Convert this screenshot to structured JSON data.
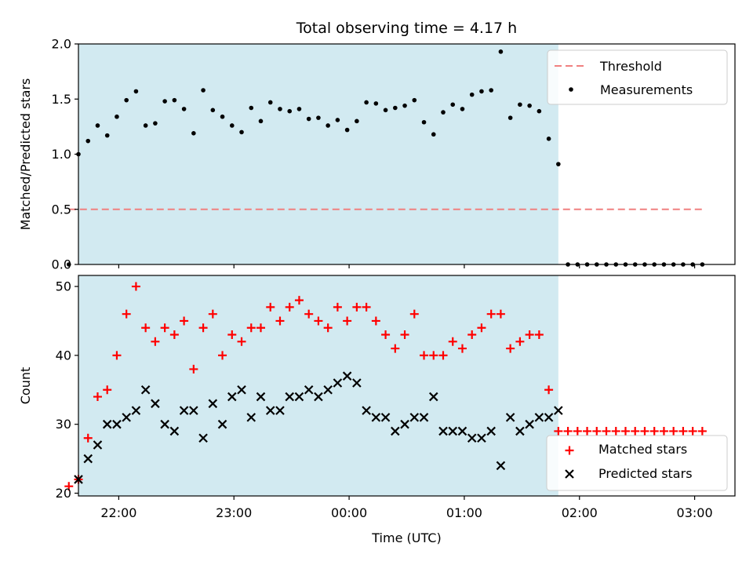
{
  "colors": {
    "observing_span": "#add8e6",
    "threshold": "#f08080",
    "measurements": "#000000",
    "matched": "#ff0000",
    "predicted": "#000000"
  },
  "chart_data": [
    {
      "type": "scatter",
      "title": "Total observing time = 4.17 h",
      "xlabel": "",
      "ylabel": "Matched/Predicted stars",
      "ylim": [
        0,
        2.0
      ],
      "yticks": [
        "0.0",
        "0.5",
        "1.0",
        "1.5",
        "2.0"
      ],
      "xlim": [
        "21:39",
        "03:21"
      ],
      "shaded_span": [
        "21:39",
        "01:49"
      ],
      "legend_position": "upper right",
      "threshold": {
        "name": "Threshold",
        "style": "dashed",
        "value": 0.5,
        "x_range": [
          "21:34",
          "03:04"
        ]
      },
      "series": [
        {
          "name": "Measurements",
          "marker": "dot",
          "points": [
            [
              "21:34",
              0.0
            ],
            [
              "21:39",
              1.0
            ],
            [
              "21:44",
              1.12
            ],
            [
              "21:49",
              1.26
            ],
            [
              "21:54",
              1.17
            ],
            [
              "21:59",
              1.34
            ],
            [
              "22:04",
              1.49
            ],
            [
              "22:09",
              1.57
            ],
            [
              "22:14",
              1.26
            ],
            [
              "22:19",
              1.28
            ],
            [
              "22:24",
              1.48
            ],
            [
              "22:29",
              1.49
            ],
            [
              "22:34",
              1.41
            ],
            [
              "22:39",
              1.19
            ],
            [
              "22:44",
              1.58
            ],
            [
              "22:49",
              1.4
            ],
            [
              "22:54",
              1.34
            ],
            [
              "22:59",
              1.26
            ],
            [
              "23:04",
              1.2
            ],
            [
              "23:09",
              1.42
            ],
            [
              "23:14",
              1.3
            ],
            [
              "23:19",
              1.47
            ],
            [
              "23:24",
              1.41
            ],
            [
              "23:29",
              1.39
            ],
            [
              "23:34",
              1.41
            ],
            [
              "23:39",
              1.32
            ],
            [
              "23:44",
              1.33
            ],
            [
              "23:49",
              1.26
            ],
            [
              "23:54",
              1.31
            ],
            [
              "23:59",
              1.22
            ],
            [
              "00:04",
              1.3
            ],
            [
              "00:09",
              1.47
            ],
            [
              "00:14",
              1.46
            ],
            [
              "00:19",
              1.4
            ],
            [
              "00:24",
              1.42
            ],
            [
              "00:29",
              1.44
            ],
            [
              "00:34",
              1.49
            ],
            [
              "00:39",
              1.29
            ],
            [
              "00:44",
              1.18
            ],
            [
              "00:49",
              1.38
            ],
            [
              "00:54",
              1.45
            ],
            [
              "00:59",
              1.41
            ],
            [
              "01:04",
              1.54
            ],
            [
              "01:09",
              1.57
            ],
            [
              "01:14",
              1.58
            ],
            [
              "01:19",
              1.93
            ],
            [
              "01:24",
              1.33
            ],
            [
              "01:29",
              1.45
            ],
            [
              "01:34",
              1.44
            ],
            [
              "01:39",
              1.39
            ],
            [
              "01:44",
              1.14
            ],
            [
              "01:49",
              0.91
            ],
            [
              "01:54",
              0.0
            ],
            [
              "01:59",
              0.0
            ],
            [
              "02:04",
              0.0
            ],
            [
              "02:09",
              0.0
            ],
            [
              "02:14",
              0.0
            ],
            [
              "02:19",
              0.0
            ],
            [
              "02:24",
              0.0
            ],
            [
              "02:29",
              0.0
            ],
            [
              "02:34",
              0.0
            ],
            [
              "02:39",
              0.0
            ],
            [
              "02:44",
              0.0
            ],
            [
              "02:49",
              0.0
            ],
            [
              "02:54",
              0.0
            ],
            [
              "02:59",
              0.0
            ],
            [
              "03:04",
              0.0
            ]
          ]
        }
      ]
    },
    {
      "type": "scatter",
      "title": "",
      "xlabel": "Time (UTC)",
      "ylabel": "Count",
      "ylim": [
        19.6,
        51.6
      ],
      "yticks": [
        "20",
        "30",
        "40",
        "50"
      ],
      "xticks": [
        "22:00",
        "23:00",
        "00:00",
        "01:00",
        "02:00",
        "03:00"
      ],
      "xlim": [
        "21:39",
        "03:21"
      ],
      "shaded_span": [
        "21:39",
        "01:49"
      ],
      "legend_position": "lower right",
      "series": [
        {
          "name": "Matched stars",
          "marker": "plus",
          "points": [
            [
              "21:34",
              21
            ],
            [
              "21:39",
              22
            ],
            [
              "21:44",
              28
            ],
            [
              "21:49",
              34
            ],
            [
              "21:54",
              35
            ],
            [
              "21:59",
              40
            ],
            [
              "22:04",
              46
            ],
            [
              "22:09",
              50
            ],
            [
              "22:14",
              44
            ],
            [
              "22:19",
              42
            ],
            [
              "22:24",
              44
            ],
            [
              "22:29",
              43
            ],
            [
              "22:34",
              45
            ],
            [
              "22:39",
              38
            ],
            [
              "22:44",
              44
            ],
            [
              "22:49",
              46
            ],
            [
              "22:54",
              40
            ],
            [
              "22:59",
              43
            ],
            [
              "23:04",
              42
            ],
            [
              "23:09",
              44
            ],
            [
              "23:14",
              44
            ],
            [
              "23:19",
              47
            ],
            [
              "23:24",
              45
            ],
            [
              "23:29",
              47
            ],
            [
              "23:34",
              48
            ],
            [
              "23:39",
              46
            ],
            [
              "23:44",
              45
            ],
            [
              "23:49",
              44
            ],
            [
              "23:54",
              47
            ],
            [
              "23:59",
              45
            ],
            [
              "00:04",
              47
            ],
            [
              "00:09",
              47
            ],
            [
              "00:14",
              45
            ],
            [
              "00:19",
              43
            ],
            [
              "00:24",
              41
            ],
            [
              "00:29",
              43
            ],
            [
              "00:34",
              46
            ],
            [
              "00:39",
              40
            ],
            [
              "00:44",
              40
            ],
            [
              "00:49",
              40
            ],
            [
              "00:54",
              42
            ],
            [
              "00:59",
              41
            ],
            [
              "01:04",
              43
            ],
            [
              "01:09",
              44
            ],
            [
              "01:14",
              46
            ],
            [
              "01:19",
              46
            ],
            [
              "01:24",
              41
            ],
            [
              "01:29",
              42
            ],
            [
              "01:34",
              43
            ],
            [
              "01:39",
              43
            ],
            [
              "01:44",
              35
            ],
            [
              "01:49",
              29
            ],
            [
              "01:54",
              29
            ],
            [
              "01:59",
              29
            ],
            [
              "02:04",
              29
            ],
            [
              "02:09",
              29
            ],
            [
              "02:14",
              29
            ],
            [
              "02:19",
              29
            ],
            [
              "02:24",
              29
            ],
            [
              "02:29",
              29
            ],
            [
              "02:34",
              29
            ],
            [
              "02:39",
              29
            ],
            [
              "02:44",
              29
            ],
            [
              "02:49",
              29
            ],
            [
              "02:54",
              29
            ],
            [
              "02:59",
              29
            ],
            [
              "03:04",
              29
            ]
          ]
        },
        {
          "name": "Predicted stars",
          "marker": "x",
          "points": [
            [
              "21:39",
              22
            ],
            [
              "21:44",
              25
            ],
            [
              "21:49",
              27
            ],
            [
              "21:54",
              30
            ],
            [
              "21:59",
              30
            ],
            [
              "22:04",
              31
            ],
            [
              "22:09",
              32
            ],
            [
              "22:14",
              35
            ],
            [
              "22:19",
              33
            ],
            [
              "22:24",
              30
            ],
            [
              "22:29",
              29
            ],
            [
              "22:34",
              32
            ],
            [
              "22:39",
              32
            ],
            [
              "22:44",
              28
            ],
            [
              "22:49",
              33
            ],
            [
              "22:54",
              30
            ],
            [
              "22:59",
              34
            ],
            [
              "23:04",
              35
            ],
            [
              "23:09",
              31
            ],
            [
              "23:14",
              34
            ],
            [
              "23:19",
              32
            ],
            [
              "23:24",
              32
            ],
            [
              "23:29",
              34
            ],
            [
              "23:34",
              34
            ],
            [
              "23:39",
              35
            ],
            [
              "23:44",
              34
            ],
            [
              "23:49",
              35
            ],
            [
              "23:54",
              36
            ],
            [
              "23:59",
              37
            ],
            [
              "00:04",
              36
            ],
            [
              "00:09",
              32
            ],
            [
              "00:14",
              31
            ],
            [
              "00:19",
              31
            ],
            [
              "00:24",
              29
            ],
            [
              "00:29",
              30
            ],
            [
              "00:34",
              31
            ],
            [
              "00:39",
              31
            ],
            [
              "00:44",
              34
            ],
            [
              "00:49",
              29
            ],
            [
              "00:54",
              29
            ],
            [
              "00:59",
              29
            ],
            [
              "01:04",
              28
            ],
            [
              "01:09",
              28
            ],
            [
              "01:14",
              29
            ],
            [
              "01:19",
              24
            ],
            [
              "01:24",
              31
            ],
            [
              "01:29",
              29
            ],
            [
              "01:34",
              30
            ],
            [
              "01:39",
              31
            ],
            [
              "01:44",
              31
            ],
            [
              "01:49",
              32
            ]
          ]
        }
      ]
    }
  ]
}
